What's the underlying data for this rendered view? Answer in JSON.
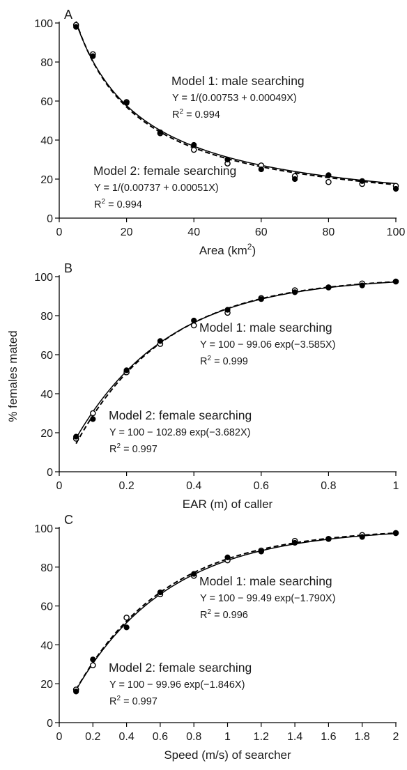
{
  "y_axis_title": "% females mated",
  "legend": {
    "filled_marker": "male searching",
    "open_marker": "female searching"
  },
  "chart_data": [
    {
      "type": "scatter",
      "panel": "A",
      "xlabel": "Area (km",
      "xlabel_sup": "2",
      "xlabel_suffix": ")",
      "xlim": [
        0,
        100
      ],
      "ylim": [
        0,
        100
      ],
      "x_ticks": [
        0,
        20,
        40,
        60,
        80,
        100
      ],
      "y_ticks": [
        0,
        20,
        40,
        60,
        80,
        100
      ],
      "x_tick_labels": [
        "0",
        "20",
        "40",
        "60",
        "80",
        "100"
      ],
      "y_tick_labels": [
        "0",
        "20",
        "40",
        "60",
        "80",
        "100"
      ],
      "series": [
        {
          "name": "Model 1: male searching",
          "marker": "filled",
          "x": [
            5,
            10,
            20,
            30,
            40,
            50,
            60,
            70,
            80,
            90,
            100
          ],
          "y": [
            98,
            83,
            59,
            44,
            37.5,
            30,
            25,
            20,
            22,
            19,
            15
          ]
        },
        {
          "name": "Model 2: female searching",
          "marker": "open",
          "x": [
            5,
            10,
            20,
            30,
            40,
            50,
            60,
            70,
            80,
            90,
            100
          ],
          "y": [
            99,
            84,
            59.5,
            43.5,
            35,
            28,
            27,
            21.5,
            18.5,
            17.5,
            16.5
          ]
        }
      ],
      "fits": [
        {
          "series": "Model 1: male searching",
          "line": "solid",
          "form": "reciprocal",
          "a": 0.00753,
          "b": 0.00049
        },
        {
          "series": "Model 2: female searching",
          "line": "dashed",
          "form": "reciprocal",
          "a": 0.00737,
          "b": 0.00051
        }
      ],
      "annotations": [
        {
          "title": "Model 1: male searching",
          "equation": "Y = 1/(0.00753 + 0.00049X)",
          "r2_prefix": "R",
          "r2_sup": "2",
          "r2_value": " = 0.994"
        },
        {
          "title": "Model 2: female searching",
          "equation": "Y = 1/(0.00737 + 0.00051X)",
          "r2_prefix": "R",
          "r2_sup": "2",
          "r2_value": " = 0.994"
        }
      ]
    },
    {
      "type": "scatter",
      "panel": "B",
      "xlabel": "EAR (m) of caller",
      "xlabel_sup": "",
      "xlabel_suffix": "",
      "xlim": [
        0,
        1
      ],
      "ylim": [
        0,
        100
      ],
      "x_ticks": [
        0,
        0.2,
        0.4,
        0.6,
        0.8,
        1
      ],
      "y_ticks": [
        0,
        20,
        40,
        60,
        80,
        100
      ],
      "x_tick_labels": [
        "0",
        "0.2",
        "0.4",
        "0.6",
        "0.8",
        "1"
      ],
      "y_tick_labels": [
        "0",
        "20",
        "40",
        "60",
        "80",
        "100"
      ],
      "series": [
        {
          "name": "Model 1: male searching",
          "marker": "filled",
          "x": [
            0.05,
            0.1,
            0.2,
            0.3,
            0.4,
            0.5,
            0.6,
            0.7,
            0.8,
            0.9,
            1.0
          ],
          "y": [
            18,
            27,
            52,
            67,
            77.5,
            83,
            88.5,
            92,
            94.5,
            95.5,
            97.5
          ]
        },
        {
          "name": "Model 2: female searching",
          "marker": "open",
          "x": [
            0.05,
            0.1,
            0.2,
            0.3,
            0.4,
            0.5,
            0.6,
            0.7,
            0.8,
            0.9,
            1.0
          ],
          "y": [
            17,
            30,
            51,
            65.5,
            75,
            81.5,
            89,
            93,
            94.5,
            96.5,
            97.5
          ]
        }
      ],
      "fits": [
        {
          "series": "Model 1: male searching",
          "line": "solid",
          "form": "exp",
          "a": 99.06,
          "b": 3.585
        },
        {
          "series": "Model 2: female searching",
          "line": "dashed",
          "form": "exp",
          "a": 102.89,
          "b": 3.682
        }
      ],
      "annotations": [
        {
          "title": "Model 1: male searching",
          "equation": "Y = 100 − 99.06 exp(−3.585X)",
          "r2_prefix": "R",
          "r2_sup": "2",
          "r2_value": " = 0.999"
        },
        {
          "title": "Model 2: female searching",
          "equation": "Y = 100 − 102.89 exp(−3.682X)",
          "r2_prefix": "R",
          "r2_sup": "2",
          "r2_value": " = 0.997"
        }
      ]
    },
    {
      "type": "scatter",
      "panel": "C",
      "xlabel": "Speed (m/s) of searcher",
      "xlabel_sup": "",
      "xlabel_suffix": "",
      "xlim": [
        0,
        2
      ],
      "ylim": [
        0,
        100
      ],
      "x_ticks": [
        0,
        0.2,
        0.4,
        0.6,
        0.8,
        1,
        1.2,
        1.4,
        1.6,
        1.8,
        2
      ],
      "y_ticks": [
        0,
        20,
        40,
        60,
        80,
        100
      ],
      "x_tick_labels": [
        "0",
        "0.2",
        "0.4",
        "0.6",
        "0.8",
        "1",
        "1.2",
        "1.4",
        "1.6",
        "1.8",
        "2"
      ],
      "y_tick_labels": [
        "0",
        "20",
        "40",
        "60",
        "80",
        "100"
      ],
      "series": [
        {
          "name": "Model 1: male searching",
          "marker": "filled",
          "x": [
            0.1,
            0.2,
            0.4,
            0.6,
            0.8,
            1.0,
            1.2,
            1.4,
            1.6,
            1.8,
            2.0
          ],
          "y": [
            16,
            32.5,
            49,
            67,
            76.5,
            85,
            88,
            92.5,
            94.5,
            95.5,
            97.5
          ]
        },
        {
          "name": "Model 2: female searching",
          "marker": "open",
          "x": [
            0.1,
            0.2,
            0.4,
            0.6,
            0.8,
            1.0,
            1.2,
            1.4,
            1.6,
            1.8,
            2.0
          ],
          "y": [
            17,
            29.5,
            54,
            66,
            75.5,
            83.5,
            88.5,
            93.5,
            94.5,
            96.5,
            97.5
          ]
        }
      ],
      "fits": [
        {
          "series": "Model 1: male searching",
          "line": "solid",
          "form": "exp",
          "a": 99.49,
          "b": 1.79
        },
        {
          "series": "Model 2: female searching",
          "line": "dashed",
          "form": "exp",
          "a": 99.96,
          "b": 1.846
        }
      ],
      "annotations": [
        {
          "title": "Model 1: male searching",
          "equation": "Y = 100 − 99.49 exp(−1.790X)",
          "r2_prefix": "R",
          "r2_sup": "2",
          "r2_value": " = 0.996"
        },
        {
          "title": "Model 2: female searching",
          "equation": "Y = 100 − 99.96 exp(−1.846X)",
          "r2_prefix": "R",
          "r2_sup": "2",
          "r2_value": " = 0.997"
        }
      ]
    }
  ]
}
